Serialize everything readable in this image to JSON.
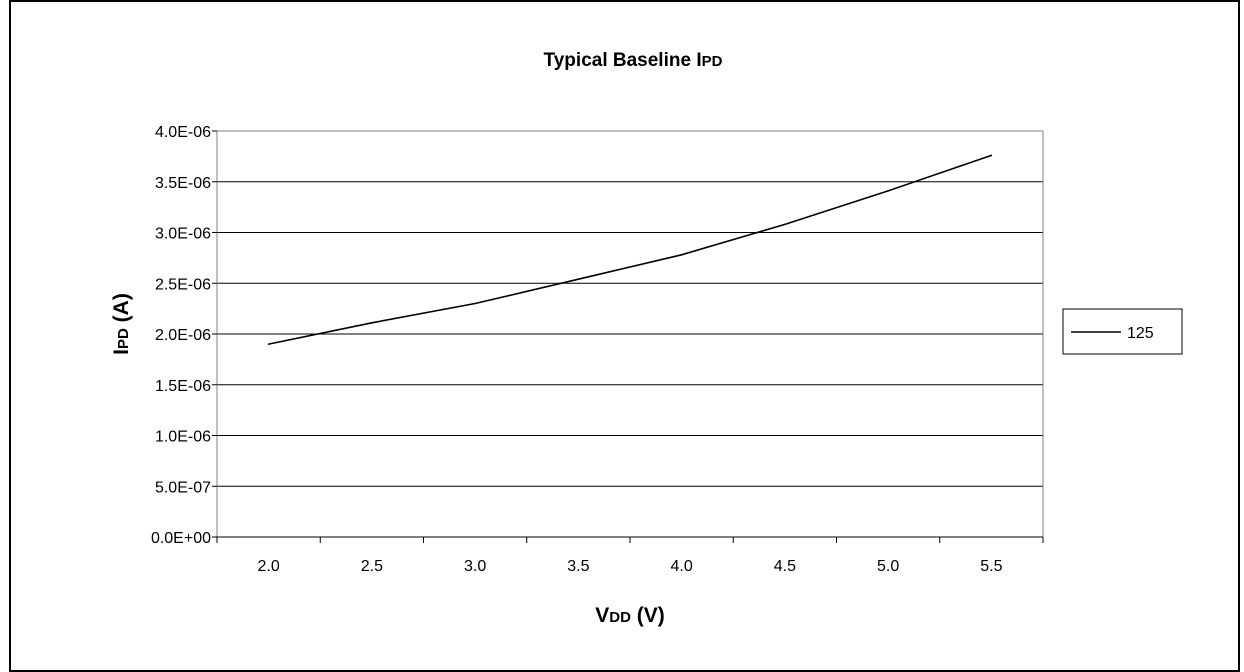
{
  "chart_data": {
    "type": "line",
    "title": {
      "main": "Typical Baseline I",
      "sub": "PD"
    },
    "xlabel": {
      "main": "V",
      "sub": "DD",
      "rest": " (V)"
    },
    "ylabel": {
      "main": "I",
      "sub": "PD",
      "rest": " (A)"
    },
    "x": [
      2.0,
      2.5,
      3.0,
      3.5,
      4.0,
      4.5,
      5.0,
      5.5
    ],
    "x_tick_labels": [
      "2.0",
      "2.5",
      "3.0",
      "3.5",
      "4.0",
      "4.5",
      "5.0",
      "5.5"
    ],
    "y_tick_labels": [
      "0.0E+00",
      "5.0E-07",
      "1.0E-06",
      "1.5E-06",
      "2.0E-06",
      "2.5E-06",
      "3.0E-06",
      "3.5E-06",
      "4.0E-06"
    ],
    "ylim": [
      0,
      4e-06
    ],
    "series": [
      {
        "name": "125",
        "color": "#000000",
        "values": [
          1.9e-06,
          2.11e-06,
          2.3e-06,
          2.54e-06,
          2.78e-06,
          3.08e-06,
          3.41e-06,
          3.76e-06
        ]
      }
    ],
    "grid": {
      "horizontal": true,
      "vertical": false
    },
    "legend_position": "right"
  }
}
